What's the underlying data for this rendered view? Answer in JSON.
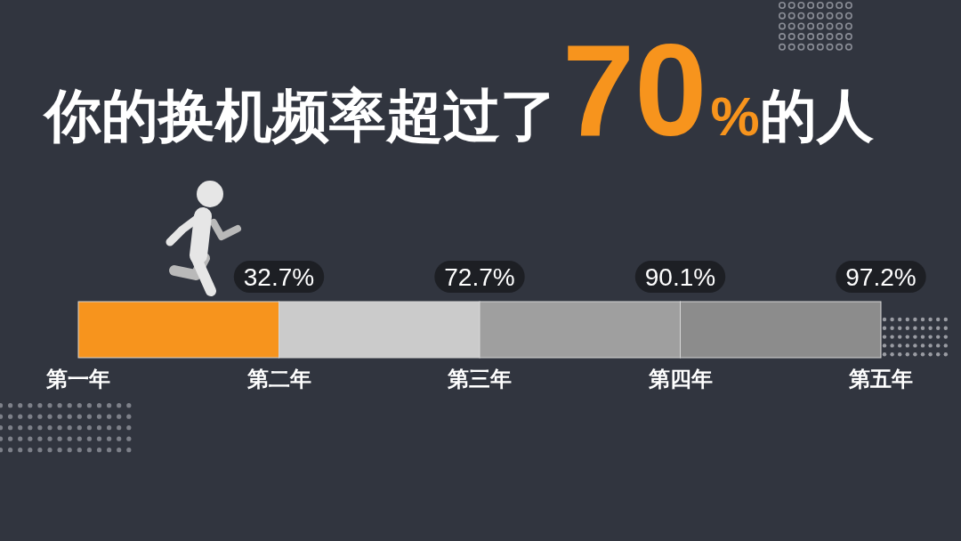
{
  "chart_data": {
    "type": "other",
    "title": "你的换机频率超过了70%的人",
    "categories": [
      "第一年",
      "第二年",
      "第三年",
      "第四年",
      "第五年"
    ],
    "values": [
      null,
      32.7,
      72.7,
      90.1,
      97.2
    ],
    "value_labels": [
      null,
      "32.7%",
      "72.7%",
      "90.1%",
      "97.2%"
    ]
  }
}
